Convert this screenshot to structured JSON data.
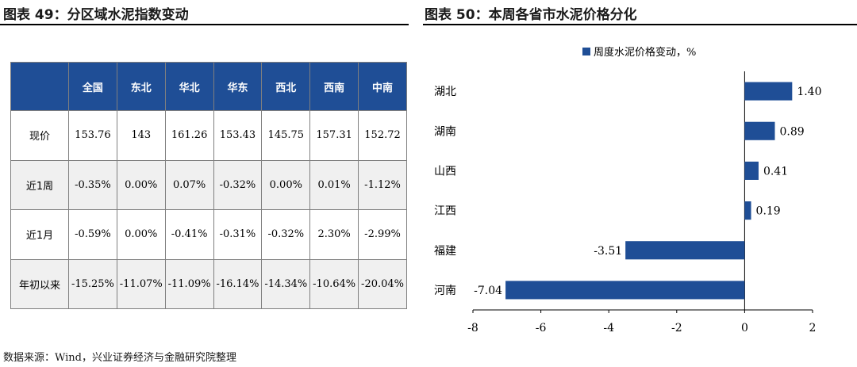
{
  "left_title": "图表 49：分区域水泥指数变动",
  "right_title": "图表 50：本周各省市水泥价格分化",
  "table": {
    "columns": [
      "",
      "全国",
      "东北",
      "华北",
      "华东",
      "西北",
      "西南",
      "中南"
    ],
    "rows": [
      {
        "label": "现价",
        "values": [
          "153.76",
          "143",
          "161.26",
          "153.43",
          "145.75",
          "157.31",
          "152.72"
        ]
      },
      {
        "label": "近1周",
        "values": [
          "-0.35%",
          "0.00%",
          "0.07%",
          "-0.32%",
          "0.00%",
          "0.01%",
          "-1.12%"
        ]
      },
      {
        "label": "近1月",
        "values": [
          "-0.59%",
          "0.00%",
          "-0.41%",
          "-0.31%",
          "-0.32%",
          "2.30%",
          "-2.99%"
        ]
      },
      {
        "label": "年初以来",
        "values": [
          "-15.25%",
          "-11.07%",
          "-11.09%",
          "-16.14%",
          "-14.34%",
          "-10.64%",
          "-20.04%"
        ]
      }
    ]
  },
  "footer": "数据来源：Wind，兴业证券经济与金融研究院整理",
  "chart_data": {
    "type": "bar",
    "orientation": "horizontal",
    "categories": [
      "湖北",
      "湖南",
      "山西",
      "江西",
      "福建",
      "河南"
    ],
    "series": [
      {
        "name": "周度水泥价格变动，%",
        "values": [
          1.4,
          0.89,
          0.41,
          0.19,
          -3.51,
          -7.04
        ]
      }
    ],
    "data_labels": [
      "1.40",
      "0.89",
      "0.41",
      "0.19",
      "-3.51",
      "-7.04"
    ],
    "xlim": [
      -8,
      2
    ],
    "xticks": [
      -8,
      -6,
      -4,
      -2,
      0,
      2
    ],
    "title": "",
    "xlabel": "",
    "ylabel": "",
    "legend_position": "top",
    "grid": false,
    "bar_color": "#1f4e96"
  }
}
